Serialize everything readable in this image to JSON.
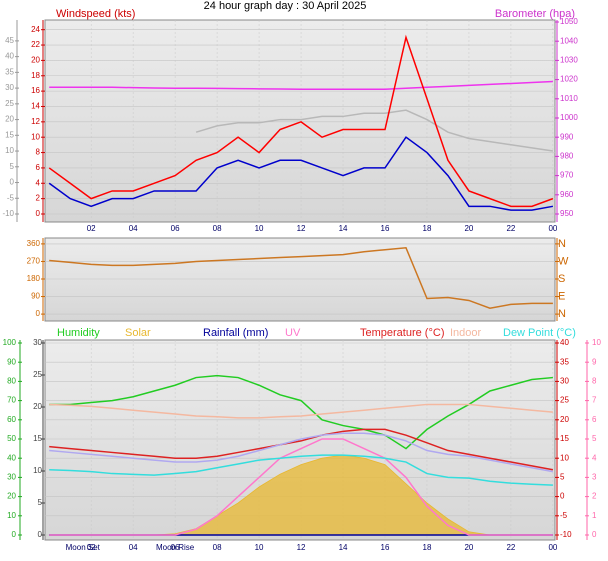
{
  "chart_data": [
    {
      "type": "line",
      "title": "24 hour graph day : 30 April 2025",
      "ylabel": "Windspeed (kts)",
      "y2label": "Barometer (hpa)",
      "x": [
        0,
        1,
        2,
        3,
        4,
        5,
        6,
        7,
        8,
        9,
        10,
        11,
        12,
        13,
        14,
        15,
        16,
        17,
        18,
        19,
        20,
        21,
        22,
        23,
        24
      ],
      "xlim": [
        -0.2,
        24.1
      ],
      "xticks": [
        {
          "value": 2,
          "label": "02"
        },
        {
          "value": 4,
          "label": "04"
        },
        {
          "value": 6,
          "label": "06"
        },
        {
          "value": 8,
          "label": "08"
        },
        10,
        12,
        14,
        16,
        18,
        20,
        22,
        {
          "value": 24,
          "label": "00"
        }
      ],
      "ylim": [
        0,
        25
      ],
      "yticks": [
        0,
        2,
        4,
        6,
        8,
        10,
        12,
        14,
        16,
        18,
        20,
        22,
        24
      ],
      "y2lim": [
        950,
        1050
      ],
      "y2ticks": [
        950,
        960,
        970,
        980,
        990,
        1000,
        1010,
        1020,
        1030,
        1040,
        1050
      ],
      "y3lim": [
        -10,
        51
      ],
      "y3ticks": [
        -10,
        -5,
        0,
        5,
        10,
        15,
        20,
        25,
        30,
        35,
        40,
        45
      ],
      "axis_colors": {
        "y": "#cc0000",
        "y2": "#cc33cc",
        "y3": "#999999"
      },
      "grid": true,
      "series": [
        {
          "color": "#b8b8b8",
          "axis": "y3",
          "values": [
            null,
            null,
            null,
            null,
            null,
            null,
            null,
            16,
            18,
            19,
            19,
            20,
            20,
            21,
            21,
            22,
            22,
            23,
            20,
            16,
            14,
            13,
            12,
            11,
            10
          ]
        },
        {
          "color": "#ee33ee",
          "axis": "y2",
          "values": [
            1016,
            1016,
            1016,
            1016,
            1015.8,
            1015.6,
            1015.5,
            1015.5,
            1015.4,
            1015.3,
            1015.2,
            1015.1,
            1015,
            1015,
            1015,
            1015,
            1015,
            1015.5,
            1016,
            1016.5,
            1017,
            1017.5,
            1018,
            1018.5,
            1019
          ]
        },
        {
          "color": "#ff0000",
          "axis": "y",
          "values": [
            6,
            4,
            2,
            3,
            3,
            4,
            5,
            7,
            8,
            10,
            8,
            11,
            12,
            10,
            11,
            11,
            11,
            23,
            15,
            7,
            3,
            2,
            1,
            1,
            2
          ]
        },
        {
          "color": "#0000cc",
          "axis": "y",
          "values": [
            4,
            2,
            1,
            2,
            2,
            3,
            3,
            3,
            6,
            7,
            6,
            7,
            7,
            6,
            5,
            6,
            6,
            10,
            8,
            5,
            1,
            1,
            0.5,
            0.5,
            1
          ]
        }
      ]
    },
    {
      "type": "line",
      "x": [
        0,
        1,
        2,
        3,
        4,
        5,
        6,
        7,
        8,
        9,
        10,
        11,
        12,
        13,
        14,
        15,
        16,
        17,
        18,
        19,
        20,
        21,
        22,
        23,
        24
      ],
      "xlim": [
        -0.2,
        24.1
      ],
      "ylim": [
        -20,
        380
      ],
      "yticks": [
        0,
        90,
        180,
        270,
        360
      ],
      "y2lim": [
        -20,
        380
      ],
      "y2ticks": [
        {
          "value": 360,
          "label": "N"
        },
        {
          "value": 270,
          "label": "W"
        },
        {
          "value": 180,
          "label": "S"
        },
        {
          "value": 90,
          "label": "E"
        },
        {
          "value": 0,
          "label": "N"
        }
      ],
      "axis_colors": {
        "y": "#cc6600",
        "y2": "#cc6600"
      },
      "grid": true,
      "series": [
        {
          "color": "#cc7722",
          "axis": "y",
          "values": [
            275,
            265,
            255,
            250,
            250,
            255,
            260,
            270,
            275,
            280,
            285,
            290,
            295,
            300,
            305,
            320,
            330,
            340,
            80,
            85,
            70,
            30,
            50,
            55,
            55
          ]
        }
      ]
    },
    {
      "type": "line",
      "x": [
        0,
        1,
        2,
        3,
        4,
        5,
        6,
        7,
        8,
        9,
        10,
        11,
        12,
        13,
        14,
        15,
        16,
        17,
        18,
        19,
        20,
        21,
        22,
        23,
        24
      ],
      "xlim": [
        -0.2,
        24.1
      ],
      "xticks": [
        {
          "value": 2,
          "label": "02"
        },
        {
          "value": 4,
          "label": "04"
        },
        {
          "value": 6,
          "label": "06"
        },
        {
          "value": 8,
          "label": "08"
        },
        10,
        12,
        14,
        16,
        18,
        20,
        22,
        {
          "value": 24,
          "label": "00"
        }
      ],
      "ylim": [
        0,
        100
      ],
      "yticks": [
        0,
        10,
        20,
        30,
        40,
        50,
        60,
        70,
        80,
        90,
        100
      ],
      "y2lim": [
        0,
        30
      ],
      "y2ticks": [
        0,
        5,
        10,
        15,
        20,
        25,
        30
      ],
      "y3lim": [
        -10,
        40
      ],
      "y3ticks": [
        -10,
        -5,
        0,
        5,
        10,
        15,
        20,
        25,
        30,
        35,
        40
      ],
      "y4lim": [
        0,
        10
      ],
      "y4ticks": [
        0,
        1,
        2,
        3,
        4,
        5,
        6,
        7,
        8,
        9,
        10
      ],
      "axis_colors": {
        "y": "#22aa22",
        "y2": "#444444",
        "y3": "#cc0000",
        "y4": "#ff66aa"
      },
      "grid": true,
      "annotations": [
        {
          "text": "Moon Set",
          "x": 1.6
        },
        {
          "text": "Moon Rise",
          "x": 6.0
        }
      ],
      "series": [
        {
          "name": "Humidity",
          "color": "#22cc22",
          "axis": "y",
          "values": [
            68,
            68,
            69,
            70,
            72,
            75,
            78,
            82,
            83,
            82,
            78,
            73,
            70,
            60,
            57,
            55,
            52,
            45,
            55,
            62,
            68,
            75,
            78,
            81,
            82
          ]
        },
        {
          "name": "Solar",
          "color": "#e8b830",
          "axis": "y2",
          "type": "area",
          "values": [
            0,
            0,
            0,
            0,
            0,
            0,
            0.2,
            1,
            3,
            5,
            7.5,
            9.5,
            11,
            12,
            12.5,
            12,
            11,
            8,
            5,
            2.5,
            0.5,
            0,
            0,
            0,
            0
          ]
        },
        {
          "name": "Rainfall (mm)",
          "color": "#000099",
          "axis": "y2",
          "values": [
            0,
            0,
            0,
            0,
            0,
            0,
            0,
            0,
            0,
            0,
            0,
            0,
            0,
            0,
            0,
            0,
            0,
            0,
            0,
            0,
            0,
            0,
            0,
            0,
            0
          ]
        },
        {
          "name": "UV",
          "color": "#ff77cc",
          "axis": "y4",
          "values": [
            0,
            0,
            0,
            0,
            0,
            0,
            0,
            0.3,
            1,
            2,
            3,
            4,
            4.5,
            5,
            5,
            4.5,
            4,
            3,
            1.5,
            0.5,
            0,
            0,
            0,
            0,
            0
          ]
        },
        {
          "name": "Temperature (°C)",
          "color": "#dd2222",
          "axis": "y3",
          "values": [
            13,
            12.5,
            12,
            11.5,
            11,
            10.5,
            10,
            10,
            10.5,
            11.5,
            12.5,
            13.5,
            14.5,
            16,
            17,
            17.5,
            17.5,
            16,
            14,
            12,
            11,
            10,
            9,
            8,
            7
          ]
        },
        {
          "name": "Indoor",
          "color": "#f4b8a0",
          "axis": "y3",
          "values": [
            24,
            23.8,
            23.5,
            23,
            22.5,
            22,
            21.5,
            21,
            20.8,
            20.5,
            20.5,
            20.8,
            21,
            21.5,
            22,
            22.5,
            23,
            23.5,
            24,
            24,
            24,
            23.5,
            23,
            22.5,
            22
          ]
        },
        {
          "name": "Dew Point (°C)",
          "color": "#33dddd",
          "axis": "y3",
          "values": [
            7,
            6.8,
            6.5,
            6,
            5.8,
            5.6,
            6,
            6.5,
            7.5,
            8.5,
            9.5,
            10,
            10.5,
            10.8,
            10.8,
            10.5,
            10,
            9,
            6,
            5,
            4.8,
            4,
            3.5,
            3.2,
            3
          ]
        },
        {
          "color": "#b0a8f0",
          "axis": "y3",
          "values": [
            12,
            11.5,
            11,
            10.5,
            10,
            9.5,
            9,
            9,
            9.5,
            10.5,
            12,
            13.5,
            15,
            16,
            16.5,
            16.5,
            16,
            14.5,
            12,
            11,
            10.5,
            9.5,
            8.5,
            7.5,
            6.5
          ]
        }
      ]
    }
  ]
}
